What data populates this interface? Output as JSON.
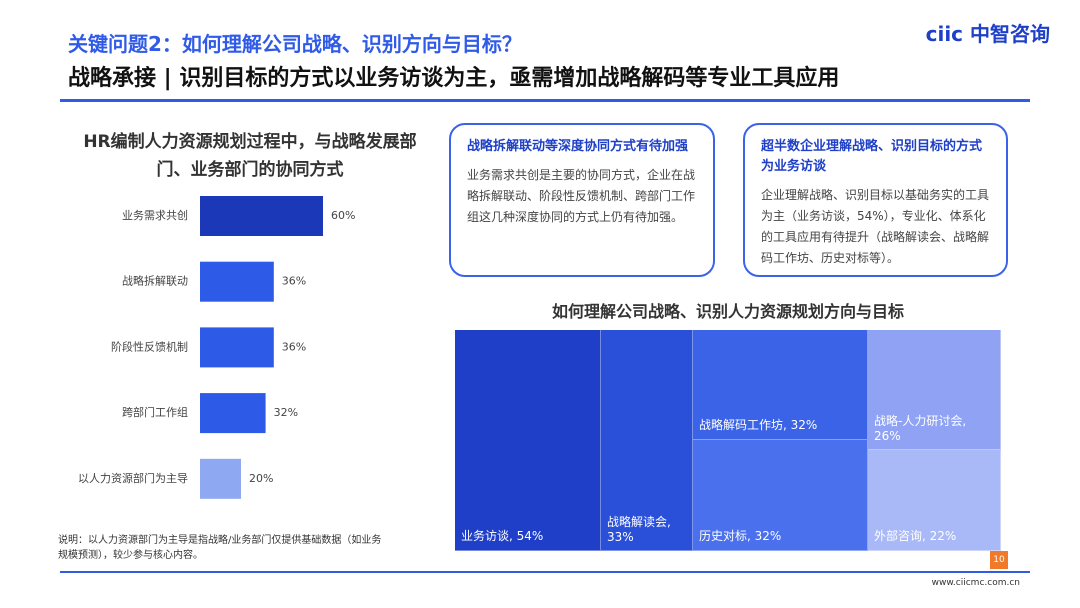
{
  "header": {
    "question": "关键问题2：如何理解公司战略、识别方向与目标？",
    "title": "战略承接 | 识别目标的方式以业务访谈为主，亟需增加战略解码等专业工具应用"
  },
  "logo": {
    "mark": "ciic",
    "name": "中智咨询"
  },
  "chart_data": [
    {
      "type": "bar",
      "orientation": "horizontal",
      "title": "HR编制人力资源规划过程中，与战略发展部门、业务部门的协同方式",
      "categories": [
        "业务需求共创",
        "战略拆解联动",
        "阶段性反馈机制",
        "跨部门工作组",
        "以人力资源部门为主导"
      ],
      "values": [
        60,
        36,
        36,
        32,
        20
      ],
      "value_labels": [
        "60%",
        "36%",
        "36%",
        "32%",
        "20%"
      ],
      "colors": [
        "#1b38b9",
        "#2d5ae6",
        "#2d5ae6",
        "#2d5ae6",
        "#8fa8f2"
      ]
    },
    {
      "type": "treemap",
      "title": "如何理解公司战略、识别人力资源规划方向与目标",
      "labels": [
        "业务访谈, 54%",
        "战略解读会, 33%",
        "战略解码工作坊, 32%",
        "历史对标, 32%",
        "战略-人力研讨会, 26%",
        "外部咨询, 22%"
      ],
      "values": [
        54,
        33,
        32,
        32,
        26,
        22
      ],
      "colors": [
        "#1f3fc9",
        "#2a4fd9",
        "#3b63e8",
        "#4a70ee",
        "#8fa2f4",
        "#a9b8f7"
      ]
    }
  ],
  "cards": [
    {
      "title": "战略拆解联动等深度协同方式有待加强",
      "body": "业务需求共创是主要的协同方式，企业在战略拆解联动、阶段性反馈机制、跨部门工作组这几种深度协同的方式上仍有待加强。"
    },
    {
      "title": "超半数企业理解战略、识别目标的方式为业务访谈",
      "body": "企业理解战略、识别目标以基础务实的工具为主（业务访谈，54%），专业化、体系化的工具应用有待提升（战略解读会、战略解码工作坊、历史对标等）。"
    }
  ],
  "note": "说明：以人力资源部门为主导是指战略/业务部门仅提供基础数据（如业务规模预测），较少参与核心内容。",
  "page_number": 10,
  "website": "www.ciicmc.com.cn"
}
